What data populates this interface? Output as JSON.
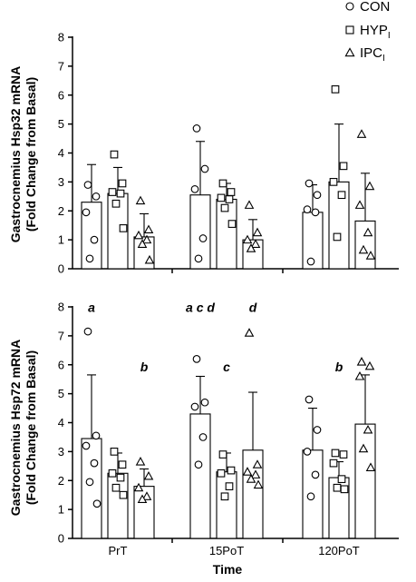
{
  "chart_data": [
    {
      "type": "bar",
      "ylabel_line1": "Gastrocnemius Hsp32 mRNA",
      "ylabel_line2": "(Fold Change from Basal)",
      "ylim": [
        0,
        8
      ],
      "yticks": [
        0,
        1,
        2,
        3,
        4,
        5,
        6,
        7,
        8
      ],
      "categories": [
        "PrT",
        "15PoT",
        "120PoT"
      ],
      "legend_position": "top-right",
      "series": [
        {
          "name": "CON",
          "marker": "circle",
          "means": [
            2.3,
            2.55,
            1.95
          ],
          "sd_upper": [
            3.6,
            4.4,
            2.9
          ],
          "points": [
            [
              2.9,
              2.5,
              1.95,
              1.0,
              0.35
            ],
            [
              4.85,
              3.45,
              2.75,
              1.05,
              0.35
            ],
            [
              2.95,
              2.55,
              2.05,
              1.95,
              0.25
            ]
          ]
        },
        {
          "name": "HYP",
          "name_subscript": "I",
          "marker": "square",
          "means": [
            2.6,
            2.4,
            3.0
          ],
          "sd_upper": [
            3.5,
            2.95,
            5.0
          ],
          "points": [
            [
              3.95,
              2.95,
              2.65,
              2.6,
              2.25,
              1.4
            ],
            [
              2.95,
              2.65,
              2.45,
              2.4,
              2.1,
              1.55
            ],
            [
              6.2,
              3.55,
              3.0,
              2.55,
              1.1
            ]
          ]
        },
        {
          "name": "IPC",
          "name_subscript": "I",
          "marker": "triangle",
          "means": [
            1.1,
            1.0,
            1.65
          ],
          "sd_upper": [
            1.9,
            1.7,
            3.3
          ],
          "points": [
            [
              2.35,
              1.35,
              1.15,
              1.0,
              0.85,
              0.3
            ],
            [
              2.2,
              1.25,
              1.0,
              0.85,
              0.7
            ],
            [
              4.65,
              2.85,
              2.2,
              1.25,
              0.65,
              0.45
            ]
          ]
        }
      ],
      "annotations": []
    },
    {
      "type": "bar",
      "ylabel_line1": "Gastrocnemius Hsp72 mRNA",
      "ylabel_line2": "(Fold Change from Basal)",
      "xlabel": "Time",
      "ylim": [
        0,
        8
      ],
      "yticks": [
        0,
        1,
        2,
        3,
        4,
        5,
        6,
        7,
        8
      ],
      "categories": [
        "PrT",
        "15PoT",
        "120PoT"
      ],
      "series": [
        {
          "name": "CON",
          "marker": "circle",
          "means": [
            3.45,
            4.3,
            3.05
          ],
          "sd_upper": [
            5.65,
            5.6,
            4.5
          ],
          "points": [
            [
              7.15,
              3.55,
              3.2,
              2.6,
              1.95,
              1.2
            ],
            [
              6.2,
              4.7,
              4.55,
              3.5,
              2.55
            ],
            [
              4.8,
              3.75,
              3.0,
              2.2,
              1.45
            ]
          ]
        },
        {
          "name": "HYP",
          "name_subscript": "I",
          "marker": "square",
          "means": [
            2.25,
            2.3,
            2.1
          ],
          "sd_upper": [
            2.95,
            2.95,
            2.65
          ],
          "points": [
            [
              3.0,
              2.55,
              2.25,
              2.1,
              1.75,
              1.5
            ],
            [
              2.9,
              2.35,
              2.25,
              1.8,
              1.45
            ],
            [
              2.95,
              2.9,
              2.6,
              2.05,
              1.75,
              1.7
            ]
          ]
        },
        {
          "name": "IPC",
          "name_subscript": "I",
          "marker": "triangle",
          "means": [
            1.8,
            3.05,
            3.95
          ],
          "sd_upper": [
            2.4,
            5.05,
            5.65
          ],
          "points": [
            [
              2.65,
              2.15,
              1.75,
              1.45,
              1.35
            ],
            [
              7.1,
              2.55,
              2.3,
              2.2,
              2.05,
              1.85
            ],
            [
              6.1,
              5.95,
              5.6,
              3.75,
              3.1,
              2.45
            ]
          ]
        }
      ],
      "annotations": [
        {
          "text": "a",
          "category": 0,
          "series": 0,
          "y": 7.95
        },
        {
          "text": "b",
          "category": 0,
          "series": 2,
          "y": 5.9
        },
        {
          "text": "a c d",
          "category": 1,
          "series": 0,
          "y": 7.95
        },
        {
          "text": "c",
          "category": 1,
          "series": 1,
          "y": 5.9
        },
        {
          "text": "d",
          "category": 1,
          "series": 2,
          "y": 7.95
        },
        {
          "text": "b",
          "category": 2,
          "series": 1,
          "y": 5.9
        }
      ]
    }
  ]
}
